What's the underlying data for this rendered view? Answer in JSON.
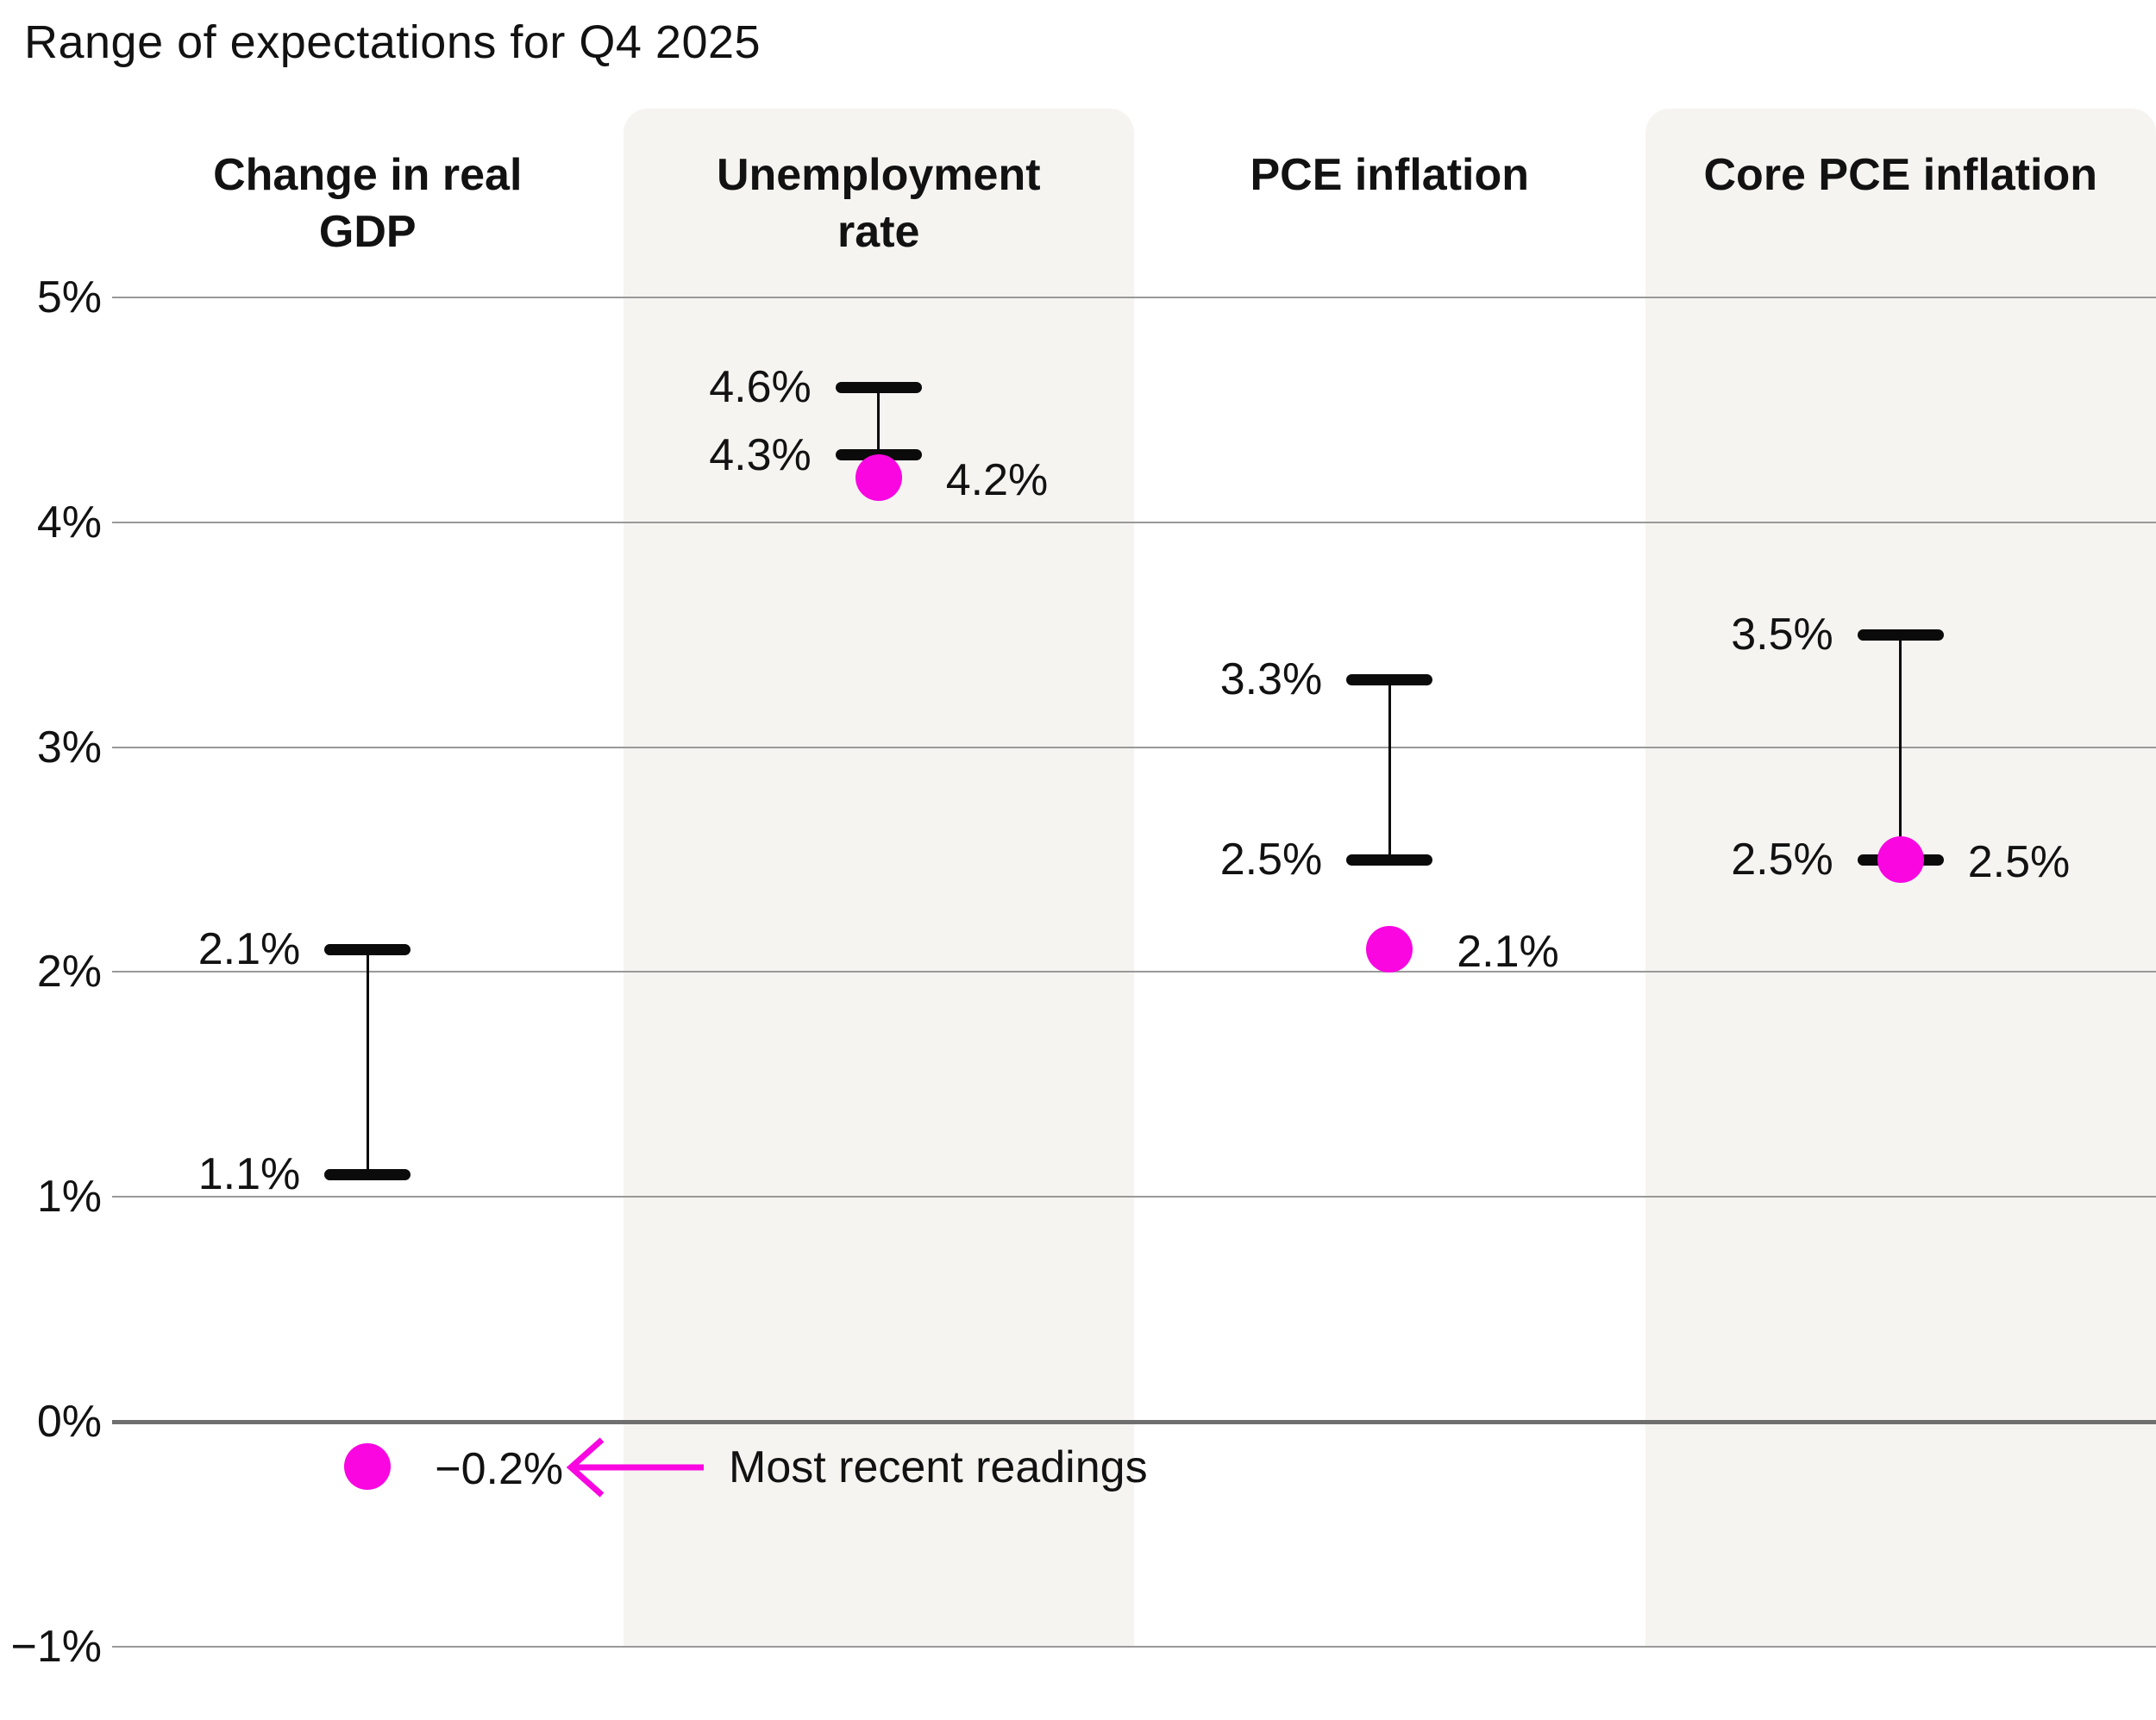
{
  "title": "Range of expectations for Q4 2025",
  "colors": {
    "accent": "#F906E1",
    "stripe": "#F5F4F1",
    "grid": "#999999",
    "zero_line": "#6f6f6f",
    "bar": "#0b0b0b",
    "text": "#121212"
  },
  "legend": {
    "label": "Most recent readings",
    "arrow_icon": "left-arrow"
  },
  "y_axis": {
    "tick_labels": [
      "5%",
      "4%",
      "3%",
      "2%",
      "1%",
      "0%",
      "−1%"
    ]
  },
  "chart_data": {
    "type": "range",
    "title": "Range of expectations for Q4 2025",
    "ylim": [
      -1,
      5
    ],
    "grid": true,
    "y_ticks": [
      {
        "value": 5,
        "label": "5%"
      },
      {
        "value": 4,
        "label": "4%"
      },
      {
        "value": 3,
        "label": "3%"
      },
      {
        "value": 2,
        "label": "2%"
      },
      {
        "value": 1,
        "label": "1%"
      },
      {
        "value": 0,
        "label": "0%"
      },
      {
        "value": -1,
        "label": "−1%"
      }
    ],
    "categories": [
      "Change in real GDP",
      "Unemployment rate",
      "PCE inflation",
      "Core PCE inflation"
    ],
    "series": [
      {
        "category": "Change in real GDP",
        "high": 2.1,
        "low": 1.1,
        "recent": -0.2,
        "high_label": "2.1%",
        "low_label": "1.1%",
        "recent_label": "−0.2%",
        "striped": false
      },
      {
        "category": "Unemployment rate",
        "high": 4.6,
        "low": 4.3,
        "recent": 4.2,
        "high_label": "4.6%",
        "low_label": "4.3%",
        "recent_label": "4.2%",
        "striped": true
      },
      {
        "category": "PCE inflation",
        "high": 3.3,
        "low": 2.5,
        "recent": 2.1,
        "high_label": "3.3%",
        "low_label": "2.5%",
        "recent_label": "2.1%",
        "striped": false
      },
      {
        "category": "Core PCE inflation",
        "high": 3.5,
        "low": 2.5,
        "recent": 2.5,
        "high_label": "3.5%",
        "low_label": "2.5%",
        "recent_label": "2.5%",
        "striped": true
      }
    ],
    "legend_label": "Most recent readings",
    "legend_points_to": "−0.2%"
  }
}
